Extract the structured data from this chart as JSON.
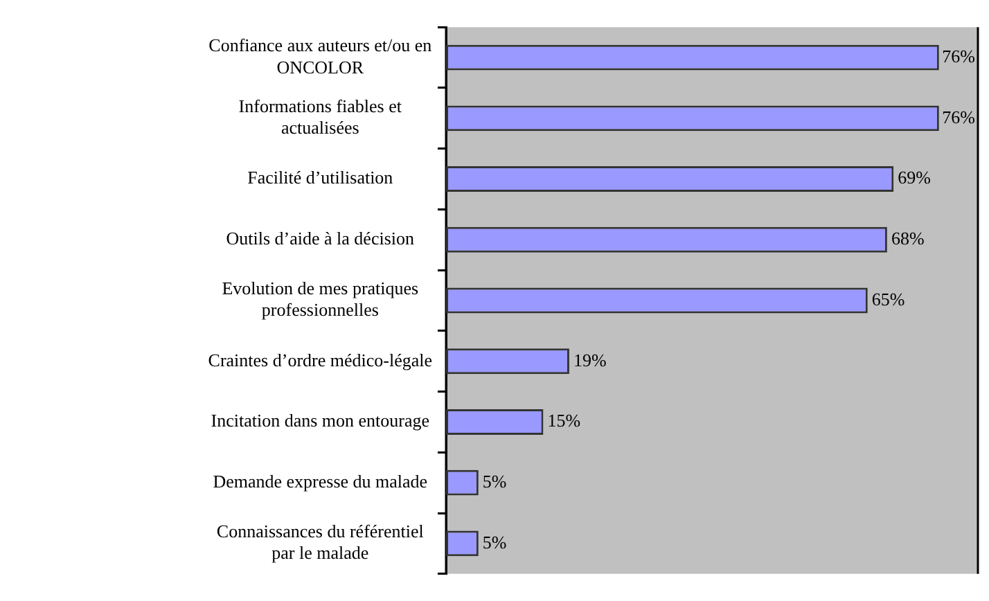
{
  "chart_data": {
    "type": "bar",
    "orientation": "horizontal",
    "categories": [
      "Confiance aux auteurs et/ou en ONCOLOR",
      "Informations fiables et actualisées",
      "Facilité d’utilisation",
      "Outils d’aide à la décision",
      "Evolution de mes pratiques professionnelles",
      "Craintes d’ordre médico-légale",
      "Incitation dans mon entourage",
      "Demande expresse du malade",
      "Connaissances du référentiel par le malade"
    ],
    "values": [
      76,
      76,
      69,
      68,
      65,
      19,
      15,
      5,
      5
    ],
    "value_labels": [
      "76%",
      "76%",
      "69%",
      "68%",
      "65%",
      "19%",
      "15%",
      "5%",
      "5%"
    ],
    "color": "#9999ff",
    "xlim": [
      0,
      82
    ],
    "tick_labels": "y",
    "grid": false,
    "legend": false
  }
}
